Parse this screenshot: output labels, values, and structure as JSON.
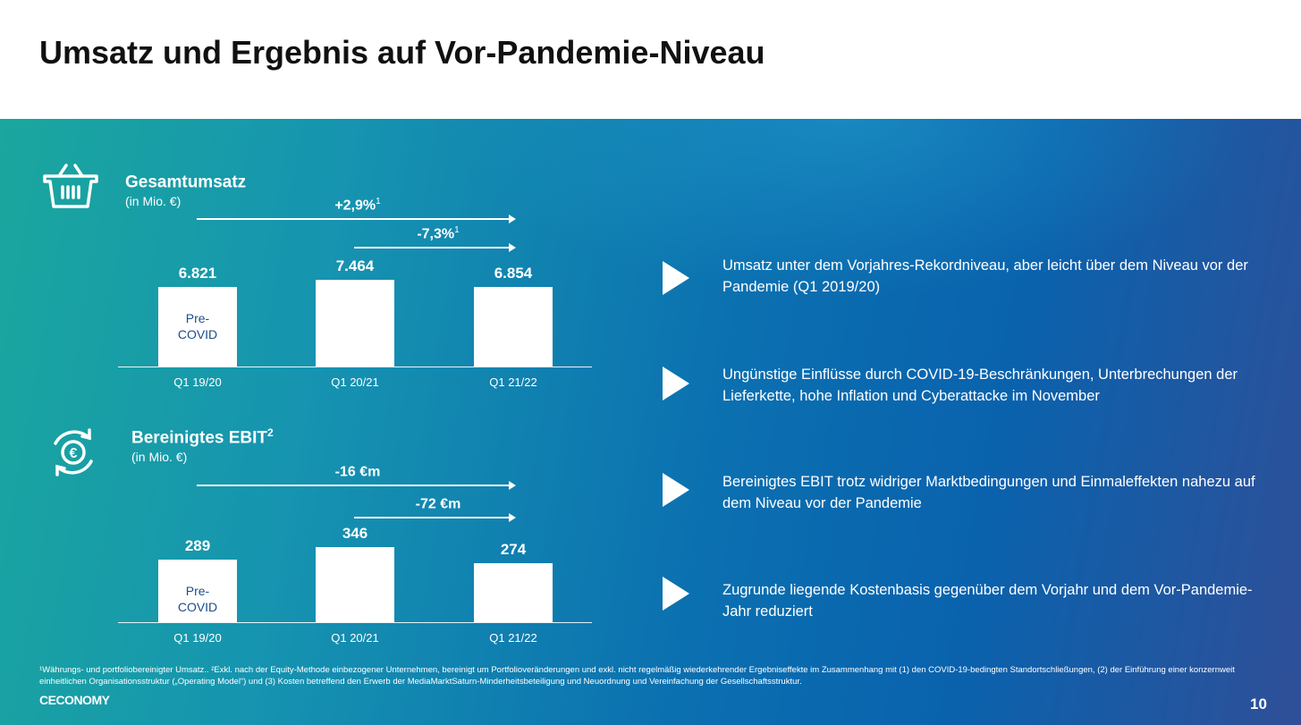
{
  "title": "Umsatz und Ergebnis auf Vor-Pandemie-Niveau",
  "chart_data": [
    {
      "type": "bar",
      "title": "Gesamtumsatz",
      "subtitle": "(in Mio. €)",
      "categories": [
        "Q1 19/20",
        "Q1 20/21",
        "Q1 21/22"
      ],
      "values": [
        6821,
        7464,
        6854
      ],
      "labels": [
        "6.821",
        "7.464",
        "6.854"
      ],
      "bar_note": "Pre-\nCOVID",
      "annotations": [
        {
          "text": "+2,9%",
          "sup": "1",
          "from": "Q1 19/20",
          "to": "Q1 21/22"
        },
        {
          "text": "-7,3%",
          "sup": "1",
          "from": "Q1 20/21",
          "to": "Q1 21/22"
        }
      ]
    },
    {
      "type": "bar",
      "title": "Bereinigtes EBIT",
      "title_sup": "2",
      "subtitle": "(in Mio. €)",
      "categories": [
        "Q1 19/20",
        "Q1 20/21",
        "Q1 21/22"
      ],
      "values": [
        289,
        346,
        274
      ],
      "labels": [
        "289",
        "346",
        "274"
      ],
      "bar_note": "Pre-\nCOVID",
      "annotations": [
        {
          "text": "-16 €m",
          "sup": "",
          "from": "Q1 19/20",
          "to": "Q1 21/22"
        },
        {
          "text": "-72 €m",
          "sup": "",
          "from": "Q1 20/21",
          "to": "Q1 21/22"
        }
      ]
    }
  ],
  "bullets": [
    "Umsatz unter dem Vorjahres-Rekordniveau, aber leicht über dem Niveau vor der Pandemie (Q1 2019/20)",
    "Ungünstige Einflüsse durch COVID-19-Beschränkungen, Unterbrechungen der Lieferkette, hohe Inflation und Cyberattacke im November",
    "Bereinigtes EBIT trotz widriger Marktbedingungen und Einmaleffekten nahezu auf dem Niveau vor der Pandemie",
    "Zugrunde liegende Kostenbasis gegenüber dem Vorjahr und dem Vor-Pandemie-Jahr reduziert"
  ],
  "footnote": "¹Währungs- und portfoliobereinigter Umsatz.. ²Exkl. nach der Equity-Methode einbezogener Unternehmen, bereinigt um Portfolioveränderungen und exkl. nicht regelmäßig wiederkehrender Ergebniseffekte im Zusammenhang mit (1) den COVID-19-bedingten Standortschließungen, (2) der Einführung einer konzernweit einheitlichen Organisationsstruktur („Operating Model“) und (3) Kosten betreffend den Erwerb der MediaMarktSaturn-Minderheitsbeteiligung und Neuordnung und Vereinfachung der Gesellschaftsstruktur.",
  "logo": "CECONOMY",
  "page_number": "10"
}
